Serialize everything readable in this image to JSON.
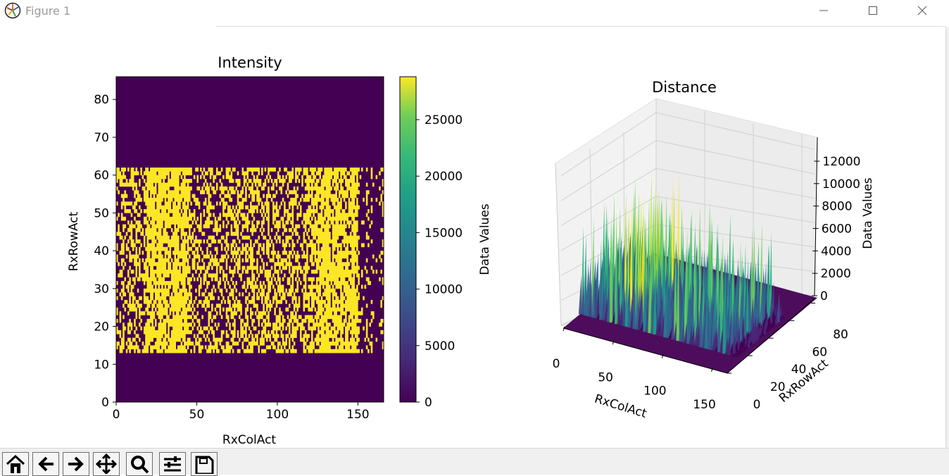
{
  "window": {
    "title": "Figure 1",
    "icons": [
      "matplotlib-logo-icon",
      "minimize-icon",
      "maximize-icon",
      "close-icon"
    ]
  },
  "toolbar": {
    "buttons": [
      {
        "name": "home-button",
        "icon": "home-icon"
      },
      {
        "name": "back-button",
        "icon": "arrow-left-icon"
      },
      {
        "name": "forward-button",
        "icon": "arrow-right-icon"
      },
      {
        "name": "pan-button",
        "icon": "move-icon"
      },
      {
        "name": "zoom-button",
        "icon": "magnifier-icon"
      },
      {
        "name": "configure-subplots-button",
        "icon": "sliders-icon"
      },
      {
        "name": "save-button",
        "icon": "floppy-disk-icon"
      }
    ]
  },
  "chart_data": [
    {
      "type": "heatmap",
      "title": "Intensity",
      "xlabel": "RxColAct",
      "ylabel": "RxRowAct",
      "xlim": [
        0,
        166
      ],
      "ylim": [
        0,
        86
      ],
      "xticks": [
        "0",
        "50",
        "100",
        "150"
      ],
      "yticks": [
        "0",
        "10",
        "20",
        "30",
        "40",
        "50",
        "60",
        "70",
        "80"
      ],
      "active_region": {
        "rows": [
          13,
          62
        ],
        "cols": [
          0,
          166
        ]
      },
      "colormap": "viridis",
      "colors": {
        "low": "#440154",
        "high": "#fde725"
      },
      "colorbar": {
        "label": "Data Values",
        "range": [
          0,
          28800
        ],
        "ticks": [
          "0",
          "5000",
          "10000",
          "15000",
          "20000",
          "25000"
        ]
      }
    },
    {
      "type": "surface3d",
      "title": "Distance",
      "xlabel": "RxColAct",
      "ylabel": "RxRowAct",
      "zlabel": "Data Values",
      "xlim": [
        0,
        166
      ],
      "ylim": [
        0,
        86
      ],
      "zlim": [
        0,
        13000
      ],
      "xticks": [
        "0",
        "50",
        "100",
        "150"
      ],
      "yticks": [
        "0",
        "20",
        "40",
        "60",
        "80"
      ],
      "zticks": [
        "0",
        "2000",
        "4000",
        "6000",
        "8000",
        "10000",
        "12000"
      ],
      "colormap": "viridis"
    }
  ]
}
